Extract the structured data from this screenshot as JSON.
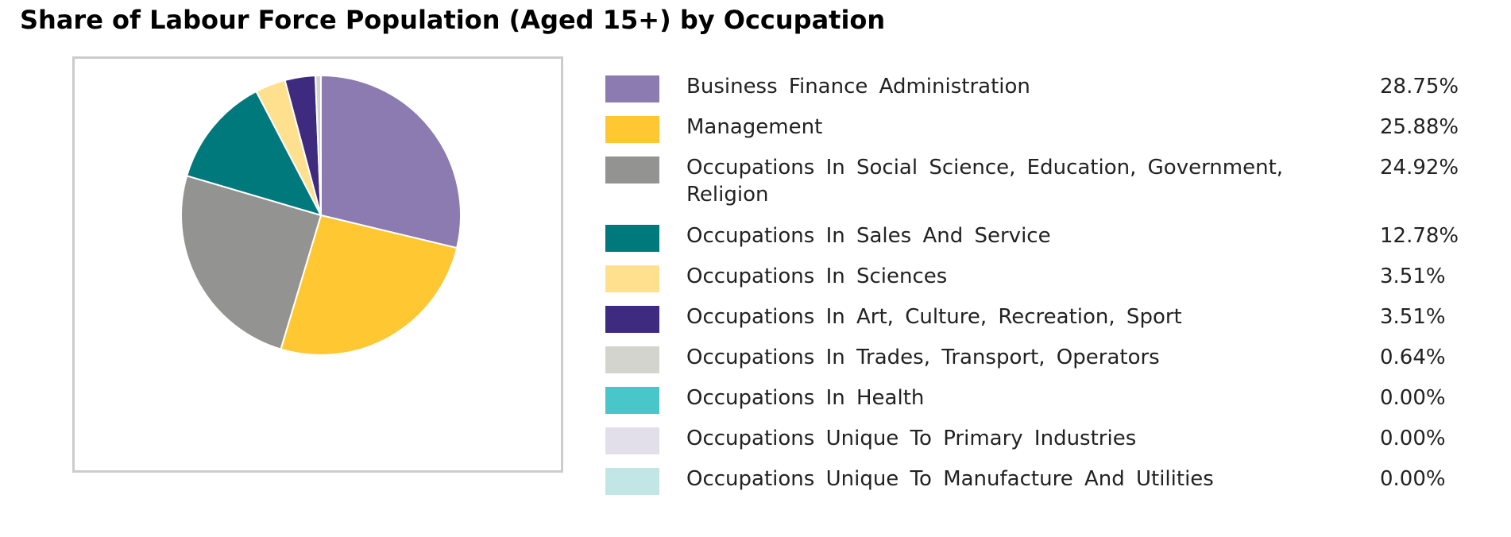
{
  "title": "Share of Labour Force Population (Aged 15+) by Occupation",
  "chart_data": {
    "type": "pie",
    "title": "Share of Labour Force Population (Aged 15+) by Occupation",
    "slices": [
      {
        "label": "Business Finance Administration",
        "value": 28.75,
        "display": "28.75%",
        "color": "#8b7bb1"
      },
      {
        "label": "Management",
        "value": 25.88,
        "display": "25.88%",
        "color": "#ffc732"
      },
      {
        "label": "Occupations In Social Science, Education, Government, Religion",
        "value": 24.92,
        "display": "24.92%",
        "color": "#939391"
      },
      {
        "label": "Occupations In Sales And Service",
        "value": 12.78,
        "display": "12.78%",
        "color": "#00797c"
      },
      {
        "label": "Occupations In Sciences",
        "value": 3.51,
        "display": "3.51%",
        "color": "#ffe08e"
      },
      {
        "label": "Occupations In Art, Culture, Recreation, Sport",
        "value": 3.51,
        "display": "3.51%",
        "color": "#3e2a7e"
      },
      {
        "label": "Occupations In Trades, Transport, Operators",
        "value": 0.64,
        "display": "0.64%",
        "color": "#d4d4cf"
      },
      {
        "label": "Occupations In Health",
        "value": 0.0,
        "display": "0.00%",
        "color": "#49c6ca"
      },
      {
        "label": "Occupations Unique To Primary Industries",
        "value": 0.0,
        "display": "0.00%",
        "color": "#e3dfea"
      },
      {
        "label": "Occupations Unique To Manufacture And Utilities",
        "value": 0.0,
        "display": "0.00%",
        "color": "#c2e6e5"
      }
    ],
    "start_angle": "12 o'clock",
    "direction": "clockwise",
    "legend_position": "right"
  }
}
